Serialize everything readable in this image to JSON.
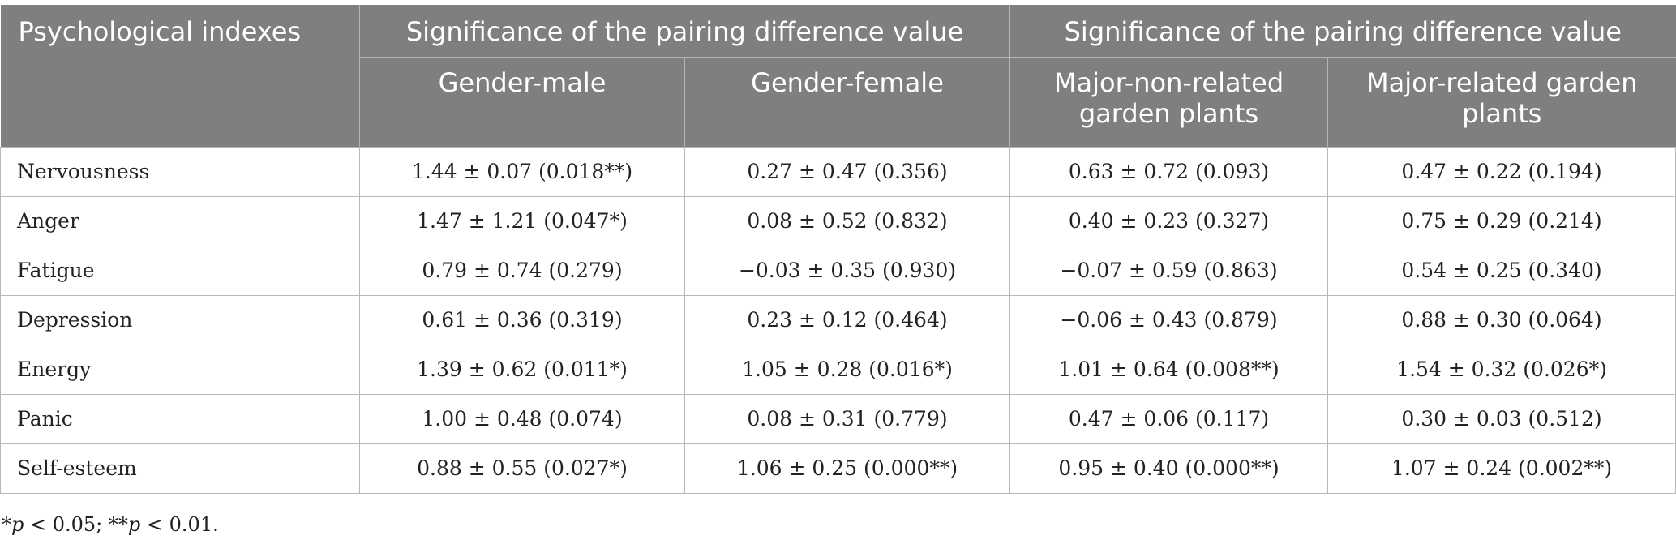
{
  "table": {
    "header_row1": {
      "col0": "Psychological indexes",
      "group1": "Significance of the pairing difference value",
      "group2": "Significance of the pairing difference value"
    },
    "header_row2": [
      "Gender-male",
      "Gender-female",
      "Major-non-related garden plants",
      "Major-related garden plants"
    ],
    "rows": [
      {
        "label": "Nervousness",
        "cells": [
          "1.44 ± 0.07 (0.018**)",
          "0.27 ± 0.47 (0.356)",
          "0.63 ± 0.72 (0.093)",
          "0.47 ± 0.22 (0.194)"
        ]
      },
      {
        "label": "Anger",
        "cells": [
          "1.47 ± 1.21 (0.047*)",
          "0.08 ± 0.52 (0.832)",
          "0.40 ± 0.23 (0.327)",
          "0.75 ± 0.29 (0.214)"
        ]
      },
      {
        "label": "Fatigue",
        "cells": [
          "0.79 ± 0.74 (0.279)",
          "−0.03 ± 0.35 (0.930)",
          "−0.07 ± 0.59 (0.863)",
          "0.54 ± 0.25 (0.340)"
        ]
      },
      {
        "label": "Depression",
        "cells": [
          "0.61 ± 0.36 (0.319)",
          "0.23 ± 0.12 (0.464)",
          "−0.06 ± 0.43 (0.879)",
          "0.88 ± 0.30 (0.064)"
        ]
      },
      {
        "label": "Energy",
        "cells": [
          "1.39 ± 0.62 (0.011*)",
          "1.05 ± 0.28 (0.016*)",
          "1.01 ± 0.64 (0.008**)",
          "1.54 ± 0.32 (0.026*)"
        ]
      },
      {
        "label": "Panic",
        "cells": [
          "1.00 ± 0.48 (0.074)",
          "0.08 ± 0.31 (0.779)",
          "0.47 ± 0.06 (0.117)",
          "0.30 ± 0.03 (0.512)"
        ]
      },
      {
        "label": "Self-esteem",
        "cells": [
          "0.88 ± 0.55 (0.027*)",
          "1.06 ± 0.25 (0.000**)",
          "0.95 ± 0.40 (0.000**)",
          "1.07 ± 0.24 (0.002**)"
        ]
      }
    ]
  },
  "footnote": {
    "star1": "*",
    "p1": "p",
    "t1": " < 0.05; **",
    "p2": "p",
    "t2": " < 0.01."
  }
}
